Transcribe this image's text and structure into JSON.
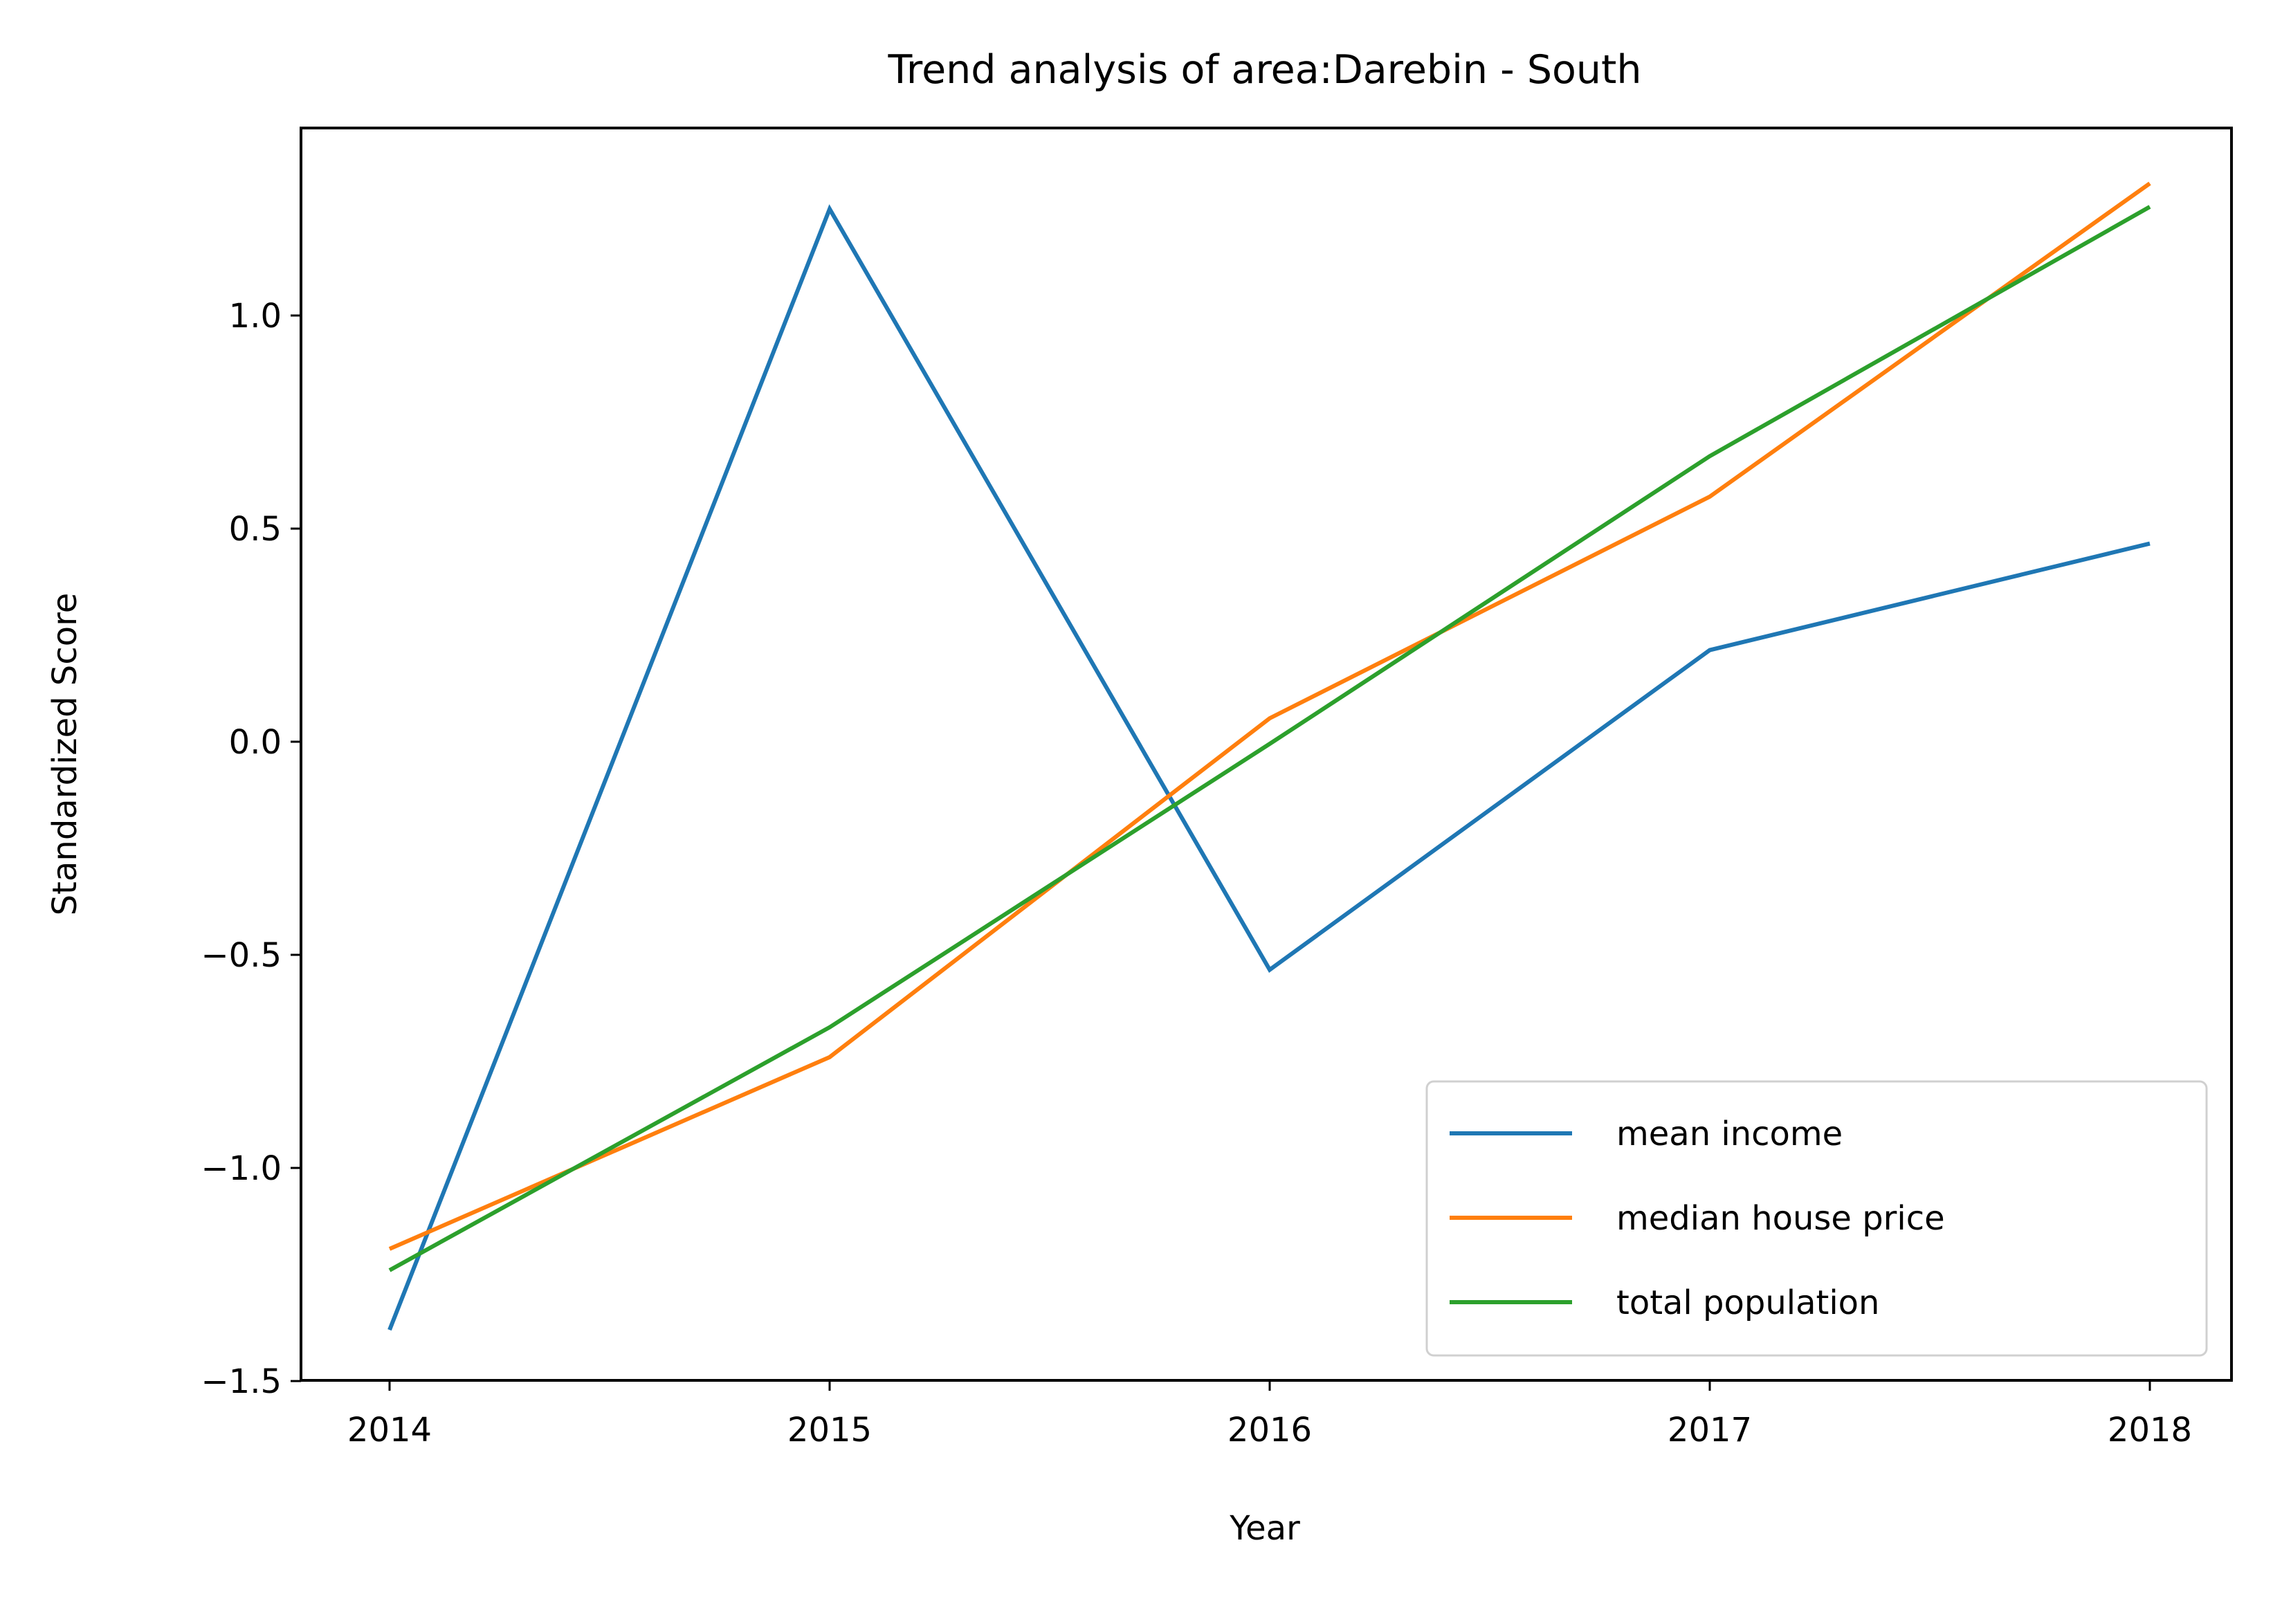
{
  "chart_data": {
    "type": "line",
    "title": "Trend analysis of area:Darebin - South",
    "xlabel": "Year",
    "ylabel": "Standardized Score",
    "categories": [
      "2014",
      "2015",
      "2016",
      "2017",
      "2018"
    ],
    "yticks": [
      "−1.5",
      "−1.0",
      "−0.5",
      "0.0",
      "0.5",
      "1.0"
    ],
    "ytick_values": [
      -1.5,
      -1.0,
      -0.5,
      0.0,
      0.5,
      1.0
    ],
    "ylim": [
      -1.5,
      1.45
    ],
    "series": [
      {
        "name": "mean income",
        "color": "#1f77b4",
        "values": [
          -1.38,
          1.25,
          -0.535,
          0.215,
          0.465
        ]
      },
      {
        "name": "median house price",
        "color": "#ff7f0e",
        "values": [
          -1.19,
          -0.74,
          0.055,
          0.575,
          1.31
        ]
      },
      {
        "name": "total population",
        "color": "#2ca02c",
        "values": [
          -1.24,
          -0.67,
          -0.005,
          0.67,
          1.255
        ]
      }
    ],
    "grid": false,
    "legend_position": "lower right"
  }
}
